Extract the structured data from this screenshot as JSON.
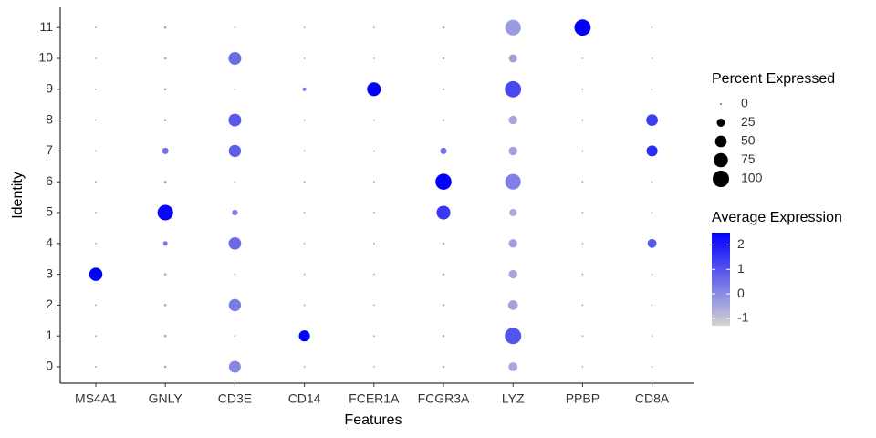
{
  "chart_data": {
    "type": "dot",
    "x_label": "Features",
    "y_label": "Identity",
    "features": [
      "MS4A1",
      "GNLY",
      "CD3E",
      "CD14",
      "FCER1A",
      "FCGR3A",
      "LYZ",
      "PPBP",
      "CD8A"
    ],
    "identities": [
      0,
      1,
      2,
      3,
      4,
      5,
      6,
      7,
      8,
      9,
      10,
      11
    ],
    "pct_expressed": [
      [
        1,
        1,
        1,
        65,
        1,
        1,
        1,
        1,
        1,
        1,
        1,
        1
      ],
      [
        2,
        2,
        2,
        2,
        8,
        90,
        2,
        15,
        2,
        2,
        2,
        2
      ],
      [
        52,
        1,
        55,
        1,
        58,
        12,
        1,
        55,
        60,
        1,
        60,
        1
      ],
      [
        1,
        45,
        1,
        1,
        1,
        1,
        1,
        1,
        1,
        5,
        1,
        1
      ],
      [
        1,
        1,
        1,
        1,
        1,
        1,
        1,
        1,
        1,
        70,
        1,
        1
      ],
      [
        2,
        2,
        2,
        2,
        2,
        70,
        95,
        15,
        2,
        2,
        2,
        2
      ],
      [
        30,
        100,
        35,
        27,
        27,
        20,
        90,
        27,
        27,
        98,
        25,
        90
      ],
      [
        1,
        1,
        1,
        1,
        1,
        1,
        1,
        1,
        1,
        1,
        1,
        98
      ],
      [
        1,
        1,
        1,
        1,
        30,
        1,
        1,
        45,
        50,
        1,
        1,
        1
      ]
    ],
    "avg_expression": [
      [
        -0.3,
        -0.3,
        -0.3,
        2.5,
        -0.3,
        -0.3,
        -0.3,
        -0.3,
        -0.3,
        -0.3,
        -0.3,
        -0.3
      ],
      [
        -0.4,
        -0.4,
        -0.4,
        -0.4,
        0.3,
        2.4,
        -0.4,
        0.5,
        -0.4,
        -0.4,
        -0.4,
        -0.4
      ],
      [
        0.1,
        -0.9,
        0.3,
        -0.9,
        0.6,
        0.2,
        -0.9,
        0.8,
        0.9,
        -0.9,
        0.6,
        -0.9
      ],
      [
        -0.4,
        2.5,
        -0.4,
        -0.4,
        -0.4,
        -0.4,
        -0.4,
        -0.4,
        -0.4,
        0.3,
        -0.4,
        -0.4
      ],
      [
        -0.3,
        -0.3,
        -0.3,
        -0.3,
        -0.3,
        -0.3,
        -0.3,
        -0.3,
        -0.3,
        2.5,
        -0.3,
        -0.3
      ],
      [
        -0.5,
        -0.5,
        -0.5,
        -0.5,
        -0.5,
        1.5,
        2.5,
        0.6,
        -0.5,
        -0.5,
        -0.5,
        -0.5
      ],
      [
        -0.5,
        1.0,
        -0.4,
        -0.5,
        -0.4,
        -0.6,
        0.2,
        -0.4,
        -0.5,
        1.2,
        -0.4,
        -0.3
      ],
      [
        -0.3,
        -0.3,
        -0.3,
        -0.3,
        -0.3,
        -0.3,
        -0.3,
        -0.3,
        -0.3,
        -0.3,
        -0.3,
        2.5
      ],
      [
        -0.5,
        -0.5,
        -0.5,
        -0.5,
        0.9,
        -0.5,
        -0.5,
        1.7,
        1.4,
        -0.5,
        -0.5,
        -0.5
      ]
    ],
    "size_legend": {
      "title": "Percent Expressed",
      "values": [
        0,
        25,
        50,
        75,
        100
      ]
    },
    "color_legend": {
      "title": "Average Expression",
      "ticks": [
        2,
        1,
        0,
        -1
      ],
      "clim": [
        -1.3,
        2.5
      ],
      "low": "#d3d3d3",
      "high": "#0000ff"
    }
  }
}
